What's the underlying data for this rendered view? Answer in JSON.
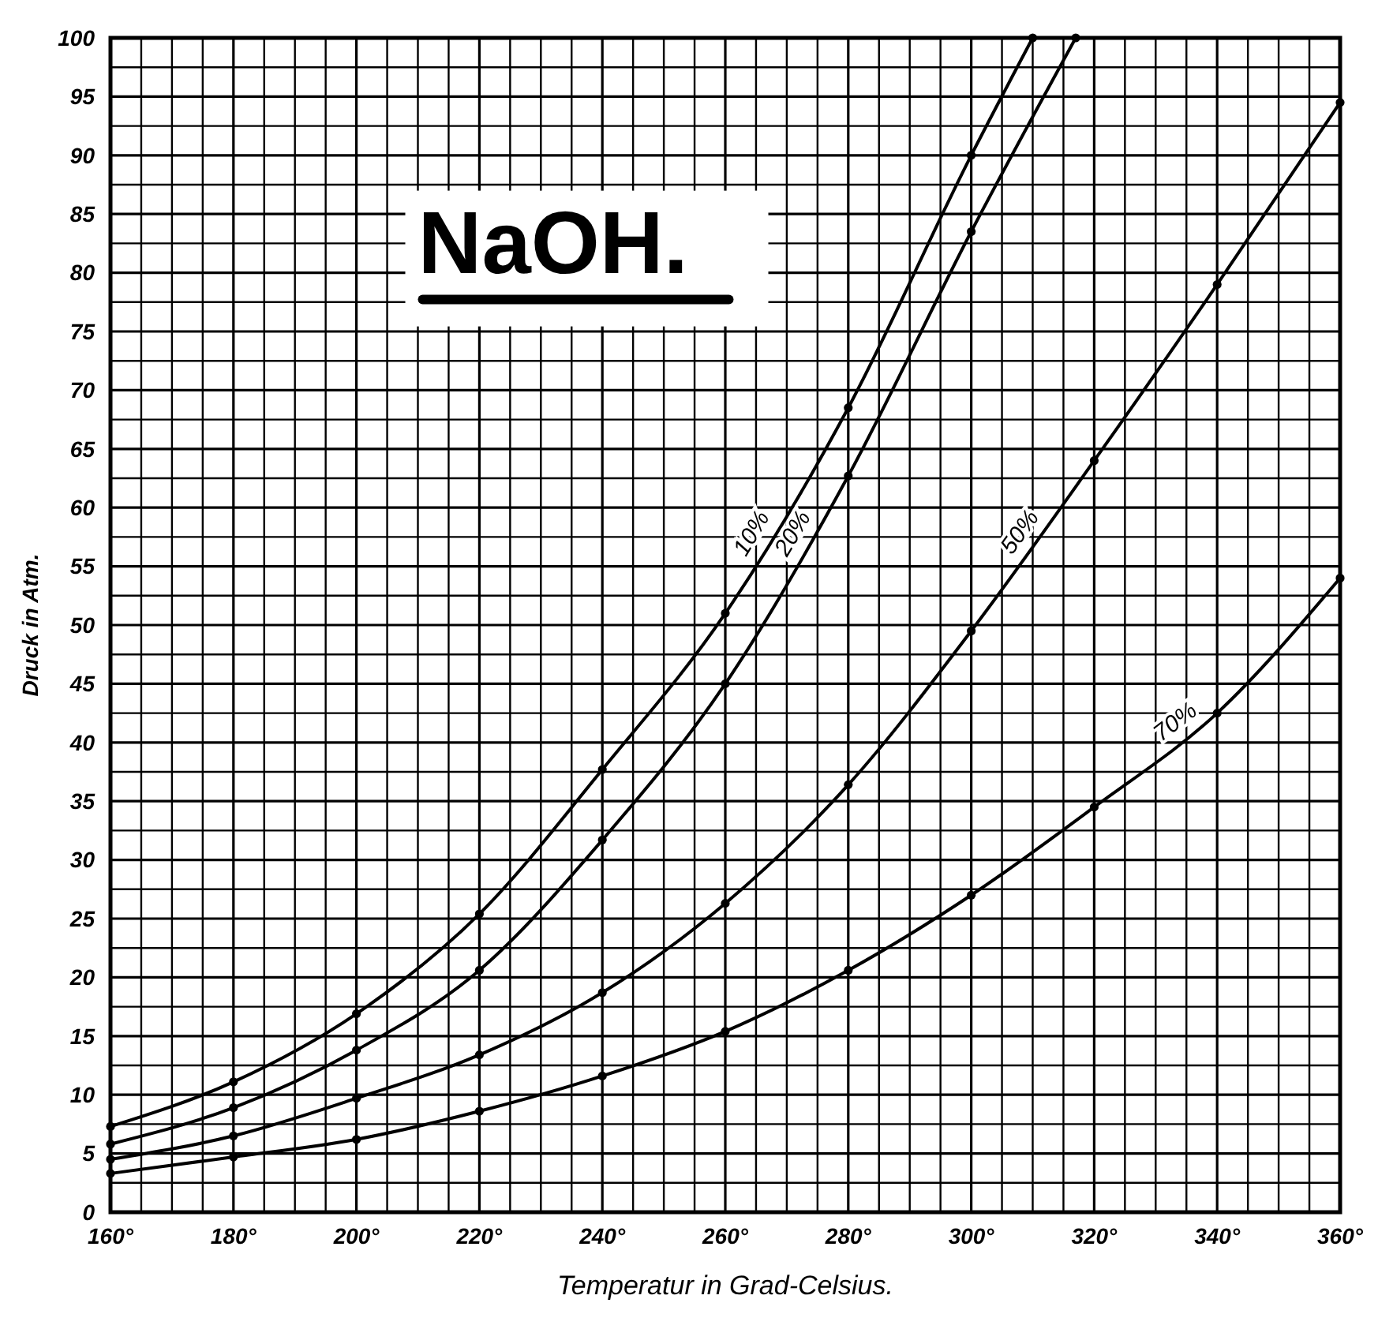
{
  "chart_data": {
    "type": "line",
    "title": "NaOH.",
    "xlabel": "Temperatur in Grad-Celsius.",
    "ylabel": "Druck in Atm.",
    "xlim": [
      160,
      360
    ],
    "xticks": [
      {
        "value": 160,
        "label": "160°"
      },
      {
        "value": 165,
        "label": null
      },
      {
        "value": 170,
        "label": null
      },
      {
        "value": 175,
        "label": null
      },
      {
        "value": 180,
        "label": "180°"
      },
      {
        "value": 185,
        "label": null
      },
      {
        "value": 190,
        "label": null
      },
      {
        "value": 195,
        "label": null
      },
      {
        "value": 200,
        "label": "200°"
      },
      {
        "value": 205,
        "label": null
      },
      {
        "value": 210,
        "label": null
      },
      {
        "value": 215,
        "label": null
      },
      {
        "value": 220,
        "label": "220°"
      },
      {
        "value": 225,
        "label": null
      },
      {
        "value": 230,
        "label": null
      },
      {
        "value": 235,
        "label": null
      },
      {
        "value": 240,
        "label": "240°"
      },
      {
        "value": 245,
        "label": null
      },
      {
        "value": 250,
        "label": null
      },
      {
        "value": 255,
        "label": null
      },
      {
        "value": 260,
        "label": "260°"
      },
      {
        "value": 265,
        "label": null
      },
      {
        "value": 270,
        "label": null
      },
      {
        "value": 275,
        "label": null
      },
      {
        "value": 280,
        "label": "280°"
      },
      {
        "value": 285,
        "label": null
      },
      {
        "value": 290,
        "label": null
      },
      {
        "value": 295,
        "label": null
      },
      {
        "value": 300,
        "label": "300°"
      },
      {
        "value": 305,
        "label": null
      },
      {
        "value": 310,
        "label": null
      },
      {
        "value": 315,
        "label": null
      },
      {
        "value": 320,
        "label": "320°"
      },
      {
        "value": 325,
        "label": null
      },
      {
        "value": 330,
        "label": null
      },
      {
        "value": 335,
        "label": null
      },
      {
        "value": 340,
        "label": "340°"
      },
      {
        "value": 345,
        "label": null
      },
      {
        "value": 350,
        "label": null
      },
      {
        "value": 355,
        "label": null
      },
      {
        "value": 360,
        "label": "360°"
      }
    ],
    "ylim": [
      0,
      100
    ],
    "yticks": [
      0,
      {
        "value": 2.5,
        "label": null
      },
      5,
      {
        "value": 7.5,
        "label": null
      },
      10,
      {
        "value": 12.5,
        "label": null
      },
      15,
      {
        "value": 17.5,
        "label": null
      },
      20,
      {
        "value": 22.5,
        "label": null
      },
      25,
      {
        "value": 27.5,
        "label": null
      },
      30,
      {
        "value": 32.5,
        "label": null
      },
      35,
      {
        "value": 37.5,
        "label": null
      },
      40,
      {
        "value": 42.5,
        "label": null
      },
      45,
      {
        "value": 47.5,
        "label": null
      },
      50,
      {
        "value": 52.5,
        "label": null
      },
      55,
      {
        "value": 57.5,
        "label": null
      },
      60,
      {
        "value": 62.5,
        "label": null
      },
      65,
      {
        "value": 67.5,
        "label": null
      },
      70,
      {
        "value": 72.5,
        "label": null
      },
      75,
      {
        "value": 77.5,
        "label": null
      },
      80,
      {
        "value": 82.5,
        "label": null
      },
      85,
      {
        "value": 87.5,
        "label": null
      },
      90,
      {
        "value": 92.5,
        "label": null
      },
      95,
      {
        "value": 97.5,
        "label": null
      },
      100
    ],
    "grid": true,
    "marker": "circle",
    "line_style": "solid",
    "series": [
      {
        "name": "10%",
        "color": "#000000",
        "x": [
          160,
          180,
          200,
          220,
          240,
          260,
          280,
          300,
          310
        ],
        "values": [
          7.3,
          11.1,
          16.9,
          25.4,
          37.7,
          51,
          68.5,
          90,
          100
        ]
      },
      {
        "name": "20%",
        "color": "#000000",
        "x": [
          160,
          180,
          200,
          220,
          240,
          260,
          280,
          300,
          317
        ],
        "values": [
          5.8,
          8.9,
          13.8,
          20.6,
          31.7,
          45,
          62.7,
          83.5,
          100
        ]
      },
      {
        "name": "50%",
        "color": "#000000",
        "x": [
          160,
          180,
          200,
          220,
          240,
          260,
          280,
          300,
          320,
          340,
          360
        ],
        "values": [
          4.5,
          6.5,
          9.7,
          13.4,
          18.7,
          26.3,
          36.4,
          49.5,
          64,
          79,
          94.5
        ]
      },
      {
        "name": "70%",
        "color": "#000000",
        "x": [
          160,
          180,
          200,
          220,
          240,
          260,
          280,
          300,
          320,
          340,
          360
        ],
        "values": [
          3.3,
          4.7,
          6.2,
          8.6,
          11.6,
          15.4,
          20.6,
          27,
          34.5,
          42.5,
          54
        ]
      }
    ]
  }
}
